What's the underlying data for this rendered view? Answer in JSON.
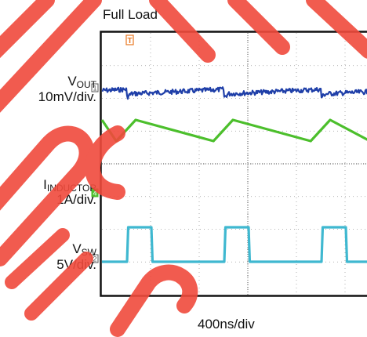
{
  "title": "Full Load",
  "timebase": "400ns/div",
  "channels": {
    "vout": {
      "name_main": "V",
      "name_sub": "OUT",
      "scale": "10mV/div.",
      "marker": "1",
      "color": "#1f3fa8"
    },
    "iinductor": {
      "name_main": "I",
      "name_sub": "INDUCTOR",
      "scale": "1A/div.",
      "marker": "4",
      "color": "#4cbf2c"
    },
    "vsw": {
      "name_main": "V",
      "name_sub": "SW",
      "scale": "5V/div.",
      "marker": "2",
      "color": "#3fb8d0"
    }
  },
  "trigger_marker": "T",
  "trigger_color": "#e87722",
  "watermark_color": "#f04a3c",
  "chart_data": {
    "type": "line",
    "title": "Full Load",
    "xlabel": "400ns/div",
    "series": [
      {
        "name": "VOUT",
        "scale": "10mV/div.",
        "shape": "ripple sawtooth",
        "period_ns": 800
      },
      {
        "name": "IINDUCTOR",
        "scale": "1A/div.",
        "shape": "triangle",
        "period_ns": 800,
        "amplitude_div": 0.8
      },
      {
        "name": "VSW",
        "scale": "5V/div.",
        "shape": "square",
        "period_ns": 800,
        "high_time_ns": 200,
        "amplitude_div": 1.8
      }
    ]
  }
}
